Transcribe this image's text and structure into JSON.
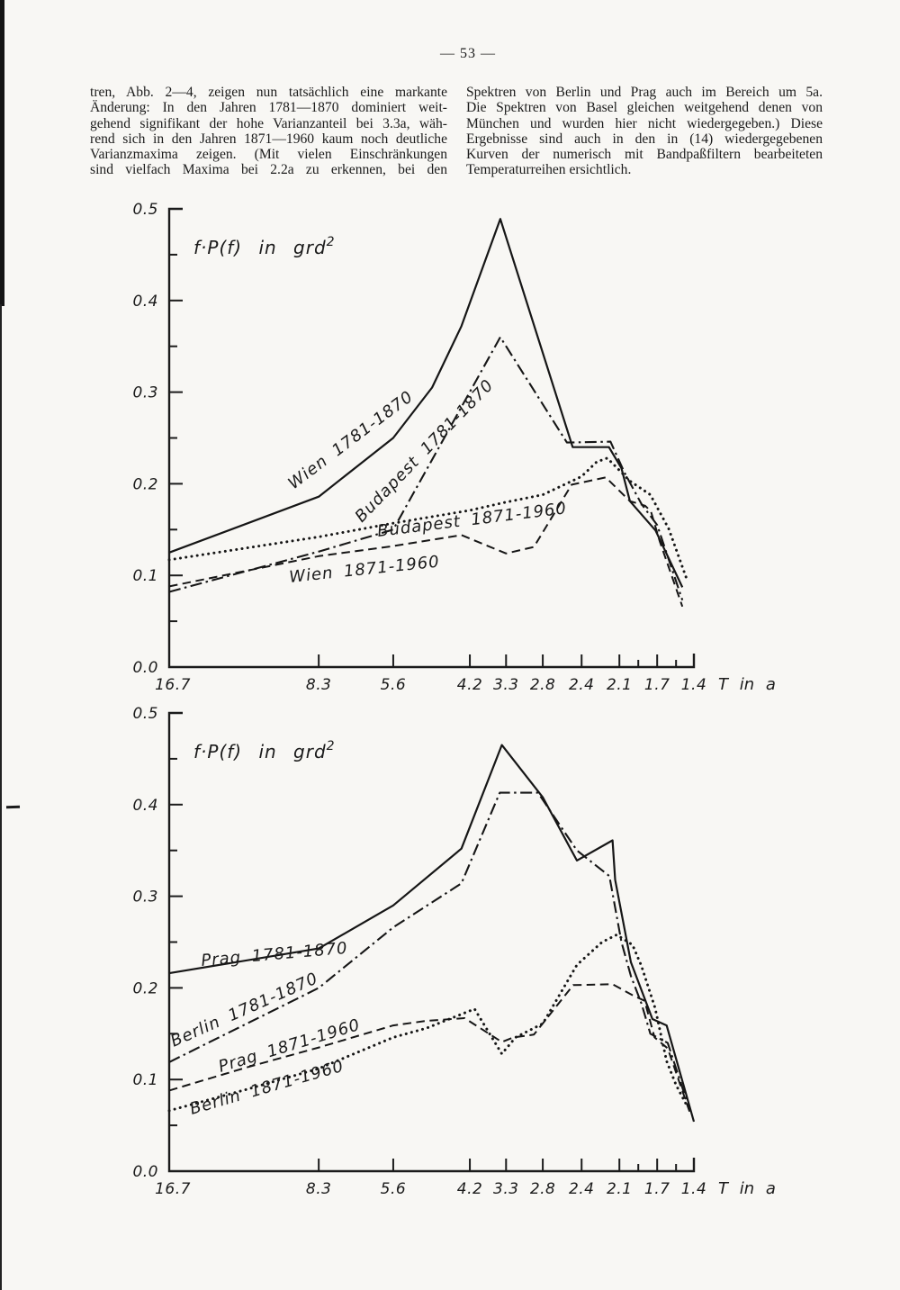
{
  "page": {
    "header": "— 53 —",
    "columns": {
      "left_lines": [
        "tren, Abb. 2—4, zeigen nun tatsächlich eine markante",
        "Änderung: In den Jahren 1781—1870 dominiert weit-",
        "gehend signifikant der hohe Varianzanteil bei 3.3a, wäh-",
        "rend sich in den Jahren 1871—1960 kaum noch deutliche",
        "Varianzmaxima zeigen. (Mit vielen Einschränkungen",
        "sind vielfach Maxima bei 2.2a zu erkennen, bei den"
      ],
      "right_lines": [
        "Spektren von Berlin und Prag auch im Bereich um 5a.",
        "Die Spektren von Basel gleichen weitgehend denen von",
        "München und wurden hier nicht wiedergegeben.) Diese",
        "Ergebnisse sind auch in den in (14) wiedergegebenen",
        "Kurven der numerisch mit Bandpaßfiltern bearbeiteten",
        "Temperaturreihen ersichtlich."
      ]
    },
    "ink_color": "#1b1b1b",
    "paper_color": "#f8f7f4"
  },
  "chart_data": [
    {
      "type": "line",
      "title_main": "f·P(f) in grd",
      "title_sup": "2",
      "xlabel": "T in a",
      "ylabel": "f·P(f) in grd²",
      "ylim": [
        0,
        0.5
      ],
      "grid": "off",
      "legend": "inline rotated labels along curves",
      "y_ticks": [
        "0.5",
        "0.4",
        "0.3",
        "0.2",
        "0.1",
        "0.0"
      ],
      "x_ticks": [
        {
          "label": "16.7",
          "pos": 0.0
        },
        {
          "label": "8.3",
          "pos": 0.285
        },
        {
          "label": "5.6",
          "pos": 0.427
        },
        {
          "label": "4.2",
          "pos": 0.573
        },
        {
          "label": "3.3",
          "pos": 0.642
        },
        {
          "label": "2.8",
          "pos": 0.712
        },
        {
          "label": "2.4",
          "pos": 0.786
        },
        {
          "label": "2.1",
          "pos": 0.858
        },
        {
          "label": "1.7",
          "pos": 0.93
        },
        {
          "label": "1.4",
          "pos": 1.0
        }
      ],
      "minor_x": [
        0.894,
        0.966
      ],
      "series": [
        {
          "name": "Wien 1781-1870",
          "style": "solid",
          "points": [
            [
              0,
              0.125
            ],
            [
              0.285,
              0.186
            ],
            [
              0.427,
              0.25
            ],
            [
              0.501,
              0.305
            ],
            [
              0.557,
              0.372
            ],
            [
              0.631,
              0.489
            ],
            [
              0.769,
              0.24
            ],
            [
              0.838,
              0.24
            ],
            [
              0.862,
              0.217
            ],
            [
              0.878,
              0.181
            ],
            [
              0.927,
              0.149
            ],
            [
              0.978,
              0.087
            ]
          ]
        },
        {
          "name": "Budapest 1781-1870",
          "style": "dashdot",
          "points": [
            [
              0,
              0.082
            ],
            [
              0.285,
              0.126
            ],
            [
              0.427,
              0.15
            ],
            [
              0.631,
              0.36
            ],
            [
              0.758,
              0.245
            ],
            [
              0.841,
              0.246
            ],
            [
              0.868,
              0.212
            ],
            [
              0.9,
              0.178
            ],
            [
              0.93,
              0.155
            ],
            [
              0.978,
              0.073
            ]
          ]
        },
        {
          "name": "Budapest 1871-1960",
          "style": "dotted",
          "points": [
            [
              0,
              0.117
            ],
            [
              0.285,
              0.142
            ],
            [
              0.427,
              0.157
            ],
            [
              0.573,
              0.171
            ],
            [
              0.642,
              0.18
            ],
            [
              0.712,
              0.188
            ],
            [
              0.786,
              0.208
            ],
            [
              0.815,
              0.224
            ],
            [
              0.835,
              0.228
            ],
            [
              0.878,
              0.203
            ],
            [
              0.917,
              0.188
            ],
            [
              0.952,
              0.151
            ],
            [
              0.985,
              0.098
            ]
          ]
        },
        {
          "name": "Wien 1871-1960",
          "style": "dashed",
          "points": [
            [
              0,
              0.088
            ],
            [
              0.285,
              0.121
            ],
            [
              0.427,
              0.132
            ],
            [
              0.557,
              0.144
            ],
            [
              0.642,
              0.124
            ],
            [
              0.695,
              0.131
            ],
            [
              0.767,
              0.199
            ],
            [
              0.832,
              0.207
            ],
            [
              0.878,
              0.181
            ],
            [
              0.907,
              0.176
            ],
            [
              0.918,
              0.17
            ],
            [
              0.935,
              0.137
            ],
            [
              0.978,
              0.066
            ]
          ]
        }
      ],
      "labels": [
        {
          "text": "Wien 1781-1870",
          "x": 196,
          "y": 329,
          "angle": -37
        },
        {
          "text": "Budapest 1781-1870",
          "x": 272,
          "y": 366,
          "angle": -46
        },
        {
          "text": "Budapest 1871-1960",
          "x": 290,
          "y": 381,
          "angle": -7
        },
        {
          "text": "Wien 1871-1960",
          "x": 192,
          "y": 432,
          "angle": -6
        }
      ]
    },
    {
      "type": "line",
      "title_main": "f·P(f) in grd",
      "title_sup": "2",
      "xlabel": "T in a",
      "ylabel": "f·P(f) in grd²",
      "ylim": [
        0,
        0.5
      ],
      "grid": "off",
      "legend": "inline rotated labels along curves",
      "y_ticks": [
        "0.5",
        "0.4",
        "0.3",
        "0.2",
        "0.1",
        "0.0"
      ],
      "x_ticks": [
        {
          "label": "16.7",
          "pos": 0.0
        },
        {
          "label": "8.3",
          "pos": 0.285
        },
        {
          "label": "5.6",
          "pos": 0.427
        },
        {
          "label": "4.2",
          "pos": 0.573
        },
        {
          "label": "3.3",
          "pos": 0.642
        },
        {
          "label": "2.8",
          "pos": 0.712
        },
        {
          "label": "2.4",
          "pos": 0.786
        },
        {
          "label": "2.1",
          "pos": 0.858
        },
        {
          "label": "1.7",
          "pos": 0.93
        },
        {
          "label": "1.4",
          "pos": 1.0
        }
      ],
      "minor_x": [
        0.894,
        0.966
      ],
      "series": [
        {
          "name": "Prag 1781-1870",
          "style": "solid",
          "points": [
            [
              0,
              0.216
            ],
            [
              0.285,
              0.243
            ],
            [
              0.427,
              0.29
            ],
            [
              0.557,
              0.352
            ],
            [
              0.634,
              0.465
            ],
            [
              0.712,
              0.408
            ],
            [
              0.777,
              0.339
            ],
            [
              0.845,
              0.361
            ],
            [
              0.85,
              0.318
            ],
            [
              0.88,
              0.228
            ],
            [
              0.921,
              0.166
            ],
            [
              0.948,
              0.159
            ],
            [
              1.0,
              0.054
            ]
          ]
        },
        {
          "name": "Berlin 1781-1870",
          "style": "dashdot",
          "points": [
            [
              0,
              0.119
            ],
            [
              0.285,
              0.2
            ],
            [
              0.427,
              0.266
            ],
            [
              0.557,
              0.314
            ],
            [
              0.63,
              0.413
            ],
            [
              0.703,
              0.413
            ],
            [
              0.777,
              0.35
            ],
            [
              0.839,
              0.322
            ],
            [
              0.862,
              0.25
            ],
            [
              0.88,
              0.213
            ],
            [
              0.9,
              0.183
            ],
            [
              0.917,
              0.15
            ],
            [
              0.95,
              0.14
            ],
            [
              0.99,
              0.07
            ]
          ]
        },
        {
          "name": "Prag 1871-1960",
          "style": "dashed",
          "points": [
            [
              0,
              0.088
            ],
            [
              0.146,
              0.113
            ],
            [
              0.285,
              0.135
            ],
            [
              0.427,
              0.159
            ],
            [
              0.49,
              0.164
            ],
            [
              0.563,
              0.167
            ],
            [
              0.634,
              0.141
            ],
            [
              0.656,
              0.146
            ],
            [
              0.695,
              0.149
            ],
            [
              0.77,
              0.203
            ],
            [
              0.845,
              0.204
            ],
            [
              0.883,
              0.192
            ],
            [
              0.906,
              0.186
            ],
            [
              0.925,
              0.146
            ],
            [
              0.95,
              0.134
            ],
            [
              0.993,
              0.063
            ]
          ]
        },
        {
          "name": "Berlin 1871-1960",
          "style": "dotted",
          "points": [
            [
              0,
              0.066
            ],
            [
              0.146,
              0.089
            ],
            [
              0.285,
              0.112
            ],
            [
              0.427,
              0.146
            ],
            [
              0.49,
              0.156
            ],
            [
              0.582,
              0.177
            ],
            [
              0.634,
              0.128
            ],
            [
              0.66,
              0.146
            ],
            [
              0.712,
              0.161
            ],
            [
              0.777,
              0.225
            ],
            [
              0.825,
              0.25
            ],
            [
              0.853,
              0.258
            ],
            [
              0.883,
              0.247
            ],
            [
              0.9,
              0.224
            ],
            [
              0.926,
              0.178
            ],
            [
              0.948,
              0.12
            ],
            [
              0.966,
              0.094
            ],
            [
              0.988,
              0.07
            ]
          ]
        }
      ],
      "labels": [
        {
          "text": "Prag 1781-1870",
          "x": 94,
          "y": 298,
          "angle": -5
        },
        {
          "text": "Berlin 1781-1870",
          "x": 63,
          "y": 388,
          "angle": -24
        },
        {
          "text": "Prag 1871-1960",
          "x": 115,
          "y": 416,
          "angle": -17
        },
        {
          "text": "Berlin 1871-1960",
          "x": 83,
          "y": 463,
          "angle": -16
        }
      ]
    }
  ]
}
